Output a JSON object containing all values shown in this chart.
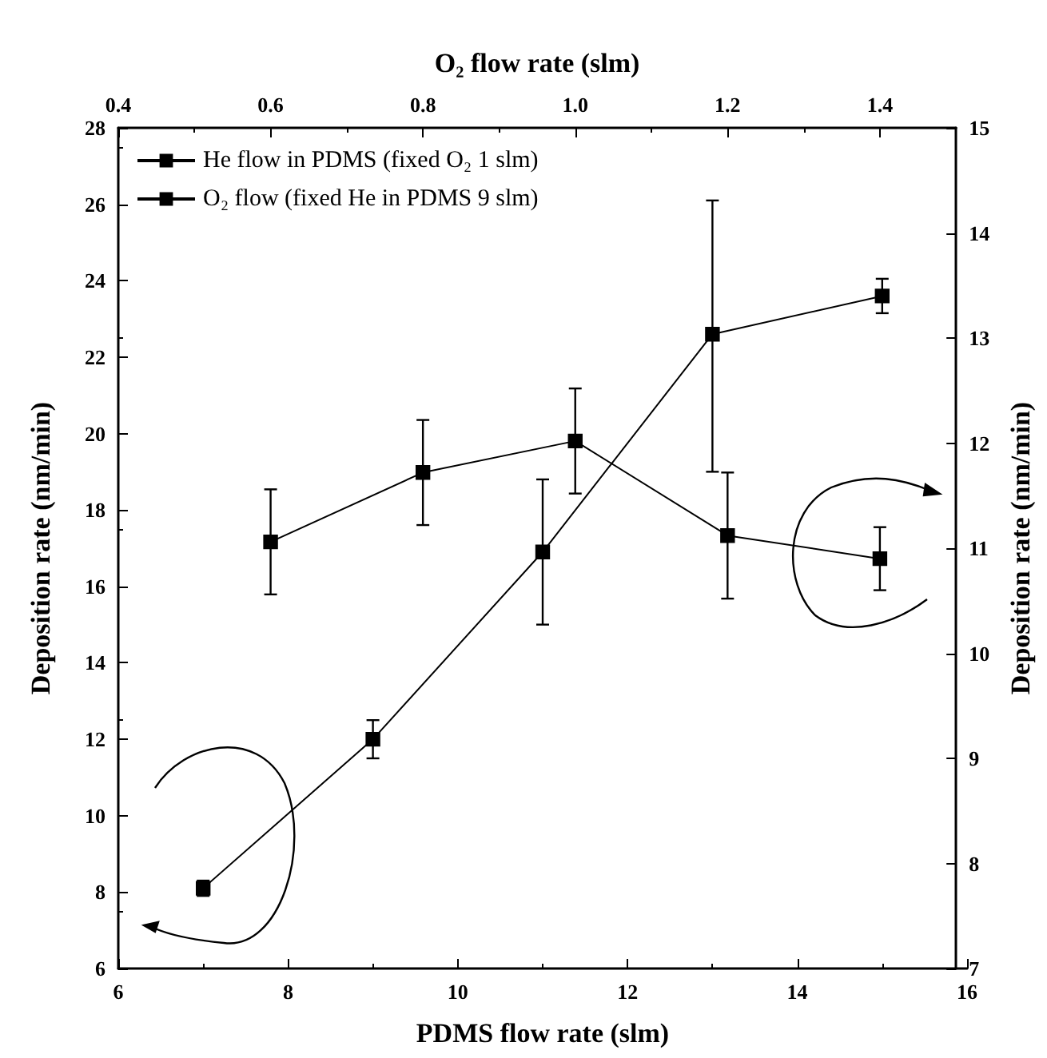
{
  "chart_data": [
    {
      "type": "line",
      "xlabel": "PDMS flow rate (slm)",
      "ylabel": "Deposition rate (nm/min)",
      "xlim": [
        6,
        16
      ],
      "xticks": [
        6,
        8,
        10,
        12,
        14,
        16
      ],
      "ylim": [
        6,
        28
      ],
      "yticks": [
        6,
        8,
        10,
        12,
        14,
        16,
        18,
        20,
        22,
        24,
        26,
        28
      ],
      "grid": false,
      "legend": "top left",
      "marker": "square",
      "line_style": "solid",
      "series": [
        {
          "name": "He flow in PDMS (fixed O₂ 1 slm)",
          "color": "#000000",
          "x": [
            7,
            9,
            11,
            13,
            15
          ],
          "values": [
            8.1,
            12.0,
            16.9,
            22.6,
            23.6
          ],
          "errors": [
            0.2,
            0.5,
            1.9,
            [
              19.0,
              26.1
            ],
            0.45
          ]
        }
      ]
    },
    {
      "type": "line",
      "xlabel": "O₂ flow rate (slm)",
      "ylabel": "Deposition rate (nm/min)",
      "xlim": [
        0.4,
        1.5
      ],
      "xticks": [
        {
          "value": 0.4,
          "label": "0.4"
        },
        {
          "value": 0.6,
          "label": "0.6"
        },
        {
          "value": 0.8,
          "label": "0.8"
        },
        {
          "value": 1.0,
          "label": "1.0"
        },
        {
          "value": 1.2,
          "label": "1.2"
        },
        {
          "value": 1.4,
          "label": "1.4"
        }
      ],
      "ylim": [
        7,
        15
      ],
      "yticks": [
        7,
        8,
        9,
        10,
        11,
        12,
        13,
        14,
        15
      ],
      "grid": false,
      "legend": "top left",
      "marker": "square",
      "line_style": "solid",
      "series": [
        {
          "name": "O₂ flow (fixed He in PDMS 9 slm)",
          "color": "#000000",
          "x": [
            0.6,
            0.8,
            1.0,
            1.2,
            1.4
          ],
          "values": [
            11.06,
            11.72,
            12.02,
            11.12,
            10.9
          ],
          "errors": [
            0.5,
            0.5,
            0.5,
            0.6,
            0.3
          ]
        }
      ]
    }
  ]
}
